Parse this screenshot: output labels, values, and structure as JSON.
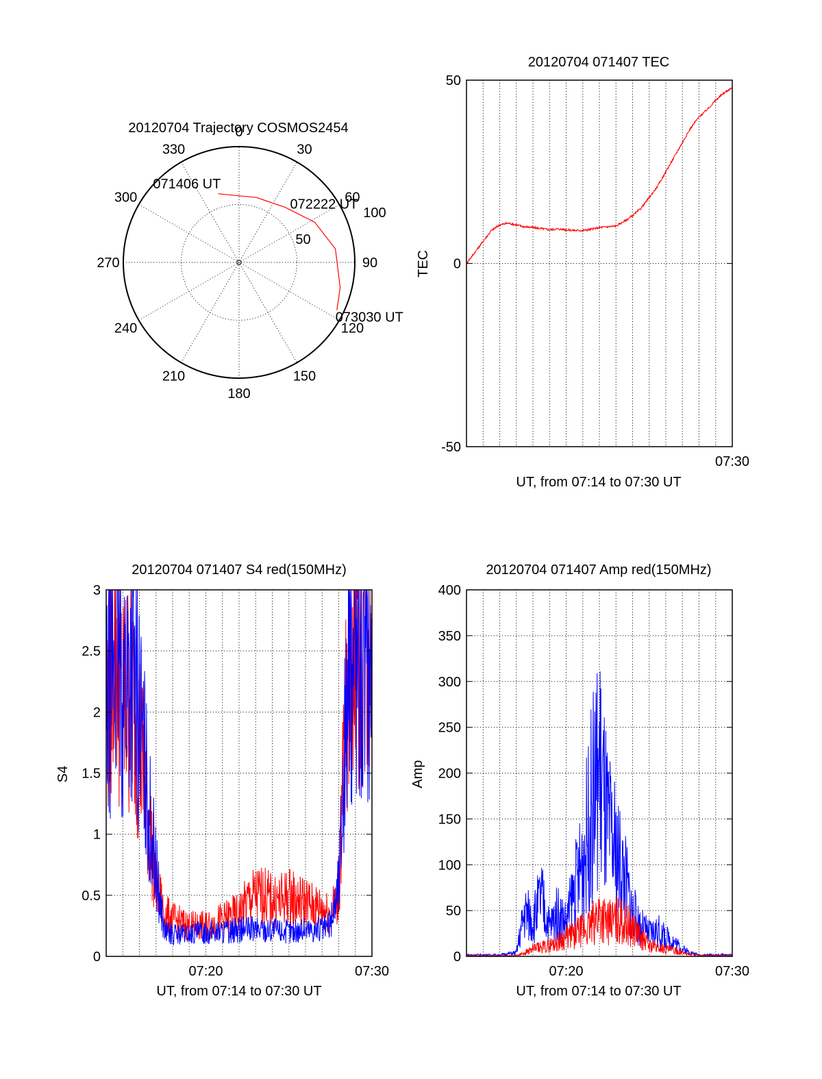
{
  "chart_data": [
    {
      "type": "polar",
      "title": "20120704 Trajectory COSMOS2454",
      "azimuth_labels": [
        "0",
        "30",
        "60",
        "90",
        "120",
        "150",
        "180",
        "210",
        "240",
        "270",
        "300",
        "330"
      ],
      "radial_labels": [
        "50",
        "100"
      ],
      "radial_values": [
        50,
        100
      ],
      "radius_max": 100,
      "trajectory": {
        "color": "#ff0000",
        "points": [
          {
            "azimuth": 343,
            "radius": 62
          },
          {
            "azimuth": 15,
            "radius": 58
          },
          {
            "azimuth": 40,
            "radius": 62
          },
          {
            "azimuth": 62,
            "radius": 74
          },
          {
            "azimuth": 82,
            "radius": 84
          },
          {
            "azimuth": 104,
            "radius": 90
          },
          {
            "azimuth": 116,
            "radius": 94
          }
        ],
        "labels": [
          {
            "text": "071406 UT",
            "azimuth": 343,
            "radius": 62
          },
          {
            "text": "072222 UT",
            "azimuth": 45,
            "radius": 64
          },
          {
            "text": "073030 UT",
            "azimuth": 116,
            "radius": 94
          }
        ]
      }
    },
    {
      "type": "line",
      "title": "20120704 071407 TEC",
      "ylabel": "TEC",
      "xlabel": "UT, from 07:14 to 07:30 UT",
      "xlim": [
        "07:14",
        "07:30"
      ],
      "ylim": [
        -50,
        50
      ],
      "yticks": [
        "50",
        "0",
        "-50"
      ],
      "xticks": [
        {
          "time": "07:30",
          "label": "07:30"
        }
      ],
      "grid": true,
      "series": [
        {
          "color": "#ff0000",
          "x": [
            "07:14:00",
            "07:14:30",
            "07:15:00",
            "07:15:30",
            "07:16:00",
            "07:16:30",
            "07:17:00",
            "07:17:30",
            "07:18:00",
            "07:18:30",
            "07:19:00",
            "07:19:30",
            "07:20:00",
            "07:20:30",
            "07:21:00",
            "07:21:30",
            "07:22:00",
            "07:22:30",
            "07:23:00",
            "07:23:30",
            "07:24:00",
            "07:24:30",
            "07:25:00",
            "07:25:30",
            "07:26:00",
            "07:26:30",
            "07:27:00",
            "07:27:30",
            "07:28:00",
            "07:28:30",
            "07:29:00",
            "07:29:30",
            "07:30:00"
          ],
          "y": [
            0,
            3,
            6,
            9,
            10.5,
            11,
            10.5,
            10,
            9.8,
            9.5,
            9.2,
            9.4,
            9.2,
            9.0,
            9.0,
            9.3,
            9.8,
            10,
            10.2,
            11.5,
            13,
            15,
            18,
            21,
            25,
            29,
            33,
            37,
            40,
            42,
            44.5,
            46.5,
            48
          ]
        }
      ]
    },
    {
      "type": "line",
      "title": "20120704 071407 S4 red(150MHz)",
      "ylabel": "S4",
      "xlabel": "UT, from 07:14 to 07:30 UT",
      "xlim": [
        "07:14",
        "07:30"
      ],
      "ylim": [
        0,
        3
      ],
      "yticks": [
        "3",
        "2.5",
        "2",
        "1.5",
        "1",
        "0.5",
        "0"
      ],
      "xticks": [
        {
          "time": "07:20",
          "label": "07:20"
        },
        {
          "time": "07:30",
          "label": "07:30"
        }
      ],
      "grid": true,
      "series": [
        {
          "color": "#ff0000",
          "x": [
            "07:14:00",
            "07:14:30",
            "07:15:00",
            "07:15:30",
            "07:16:00",
            "07:16:30",
            "07:17:00",
            "07:17:30",
            "07:18:00",
            "07:19:00",
            "07:20:00",
            "07:21:00",
            "07:22:00",
            "07:22:30",
            "07:23:00",
            "07:23:30",
            "07:24:00",
            "07:24:30",
            "07:25:00",
            "07:25:30",
            "07:26:00",
            "07:26:30",
            "07:27:00",
            "07:27:30",
            "07:28:00",
            "07:28:30",
            "07:29:00",
            "07:29:30",
            "07:30:00"
          ],
          "y": [
            2.0,
            2.8,
            2.0,
            2.2,
            1.8,
            1.2,
            0.6,
            0.35,
            0.3,
            0.25,
            0.25,
            0.3,
            0.35,
            0.45,
            0.5,
            0.5,
            0.45,
            0.45,
            0.5,
            0.45,
            0.45,
            0.4,
            0.4,
            0.35,
            0.5,
            2.2,
            2.8,
            2.5,
            2.7
          ]
        },
        {
          "color": "#0000ff",
          "x": [
            "07:14:00",
            "07:14:30",
            "07:15:00",
            "07:15:30",
            "07:16:00",
            "07:16:30",
            "07:17:00",
            "07:17:30",
            "07:18:00",
            "07:19:00",
            "07:20:00",
            "07:21:00",
            "07:22:00",
            "07:23:00",
            "07:24:00",
            "07:25:00",
            "07:26:00",
            "07:27:00",
            "07:27:30",
            "07:28:00",
            "07:28:30",
            "07:29:00",
            "07:29:30",
            "07:30:00"
          ],
          "y": [
            1.9,
            2.6,
            2.2,
            2.4,
            2.0,
            1.3,
            0.7,
            0.2,
            0.18,
            0.18,
            0.2,
            0.2,
            0.22,
            0.22,
            0.22,
            0.2,
            0.22,
            0.22,
            0.25,
            0.6,
            2.1,
            2.6,
            2.3,
            2.5
          ]
        }
      ]
    },
    {
      "type": "line",
      "title": "20120704 071407 Amp red(150MHz)",
      "ylabel": "Amp",
      "xlabel": "UT, from 07:14 to 07:30 UT",
      "xlim": [
        "07:14",
        "07:30"
      ],
      "ylim": [
        0,
        400
      ],
      "yticks": [
        "400",
        "350",
        "300",
        "250",
        "200",
        "150",
        "100",
        "50",
        "0"
      ],
      "xticks": [
        {
          "time": "07:20",
          "label": "07:20"
        },
        {
          "time": "07:30",
          "label": "07:30"
        }
      ],
      "grid": true,
      "series": [
        {
          "color": "#0000ff",
          "x": [
            "07:14:00",
            "07:16:00",
            "07:17:00",
            "07:17:30",
            "07:18:00",
            "07:18:30",
            "07:19:00",
            "07:19:30",
            "07:20:00",
            "07:20:30",
            "07:21:00",
            "07:21:30",
            "07:22:00",
            "07:22:30",
            "07:23:00",
            "07:23:30",
            "07:24:00",
            "07:24:30",
            "07:25:00",
            "07:25:30",
            "07:26:00",
            "07:26:30",
            "07:27:00",
            "07:27:30",
            "07:28:00",
            "07:30:00"
          ],
          "y": [
            2,
            2,
            5,
            60,
            50,
            80,
            40,
            60,
            45,
            90,
            130,
            200,
            260,
            170,
            140,
            110,
            60,
            40,
            30,
            35,
            25,
            20,
            10,
            5,
            2,
            2
          ]
        },
        {
          "color": "#ff0000",
          "x": [
            "07:14:00",
            "07:17:00",
            "07:17:30",
            "07:18:00",
            "07:18:30",
            "07:19:00",
            "07:19:30",
            "07:20:00",
            "07:20:30",
            "07:21:00",
            "07:21:30",
            "07:22:00",
            "07:22:30",
            "07:23:00",
            "07:23:30",
            "07:24:00",
            "07:24:30",
            "07:25:00",
            "07:25:30",
            "07:26:00",
            "07:26:30",
            "07:27:00",
            "07:28:00",
            "07:30:00"
          ],
          "y": [
            1,
            1,
            5,
            10,
            12,
            15,
            20,
            25,
            30,
            35,
            40,
            60,
            45,
            50,
            45,
            40,
            25,
            15,
            12,
            10,
            8,
            5,
            1,
            1
          ]
        }
      ]
    }
  ]
}
